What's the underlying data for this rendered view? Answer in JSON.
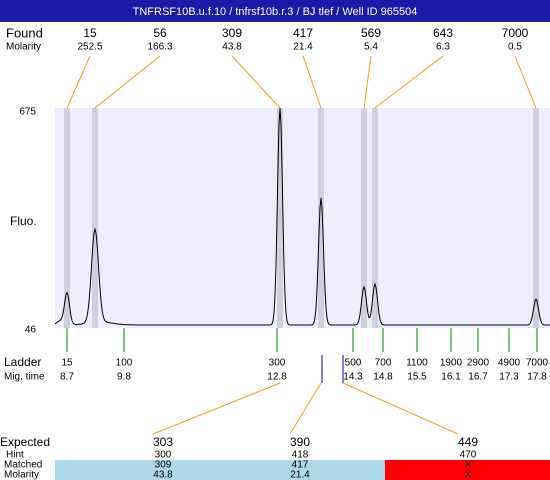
{
  "header": {
    "title": "TNFRSF10B.u.f.10 / tnfrsf10b.r.3 / BJ tlef / Well ID 965504"
  },
  "found": {
    "label": "Found",
    "molarity_label": "Molarity",
    "peaks": [
      {
        "size": 15,
        "molarity": 252.5
      },
      {
        "size": 56,
        "molarity": 166.3
      },
      {
        "size": 309,
        "molarity": 43.8
      },
      {
        "size": 417,
        "molarity": 21.4
      },
      {
        "size": 569,
        "molarity": 5.4
      },
      {
        "size": 643,
        "molarity": 6.3
      },
      {
        "size": 7000,
        "molarity": 0.5
      }
    ]
  },
  "plot": {
    "y_label": "Fluo.",
    "y_top": 675,
    "y_bottom": 46
  },
  "ladder": {
    "label": "Ladder",
    "mig_label": "Mig. time",
    "items": [
      {
        "size": 15,
        "time": 8.7
      },
      {
        "size": 100,
        "time": 9.8
      },
      {
        "size": 300,
        "time": 12.8
      },
      {
        "size": 500,
        "time": 14.3
      },
      {
        "size": 700,
        "time": 14.8
      },
      {
        "size": 1100,
        "time": 15.5
      },
      {
        "size": 1900,
        "time": 16.1
      },
      {
        "size": 2900,
        "time": 16.7
      },
      {
        "size": 4900,
        "time": 17.3
      },
      {
        "size": 7000,
        "time": 17.8
      }
    ]
  },
  "expected": {
    "label": "Expected",
    "hint_label": "Hint",
    "matched_label": "Matched",
    "molarity_label": "Molarity",
    "items": [
      {
        "expected": 303,
        "hint": 300,
        "matched": 309,
        "molarity": 43.8
      },
      {
        "expected": 390,
        "hint": 418,
        "matched": 417,
        "molarity": 21.4
      },
      {
        "expected": 449,
        "hint": 470,
        "matched": "X",
        "molarity": "X"
      }
    ]
  }
}
